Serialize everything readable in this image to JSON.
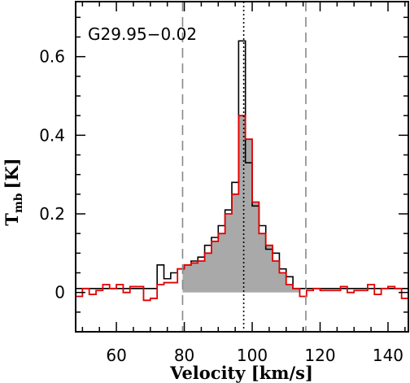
{
  "chart_data": {
    "type": "line",
    "xlabel": "Velocity [km/s]",
    "ylabel_main": "T",
    "ylabel_sub": "mb",
    "ylabel_unit": "[K]",
    "annotation": "G29.95−0.02",
    "xlim": [
      48,
      146
    ],
    "ylim": [
      -0.1,
      0.74
    ],
    "xticks": [
      60,
      80,
      100,
      120,
      140
    ],
    "xtick_labels": [
      "60",
      "80",
      "100",
      "120",
      "140"
    ],
    "yticks": [
      0,
      0.2,
      0.4,
      0.6
    ],
    "ytick_labels": [
      "0",
      "0.2",
      "0.4",
      "0.6"
    ],
    "vlines": [
      {
        "x": 79.5,
        "style": "dashed",
        "color": "#888888"
      },
      {
        "x": 97.5,
        "style": "dotted",
        "color": "#000000"
      },
      {
        "x": 115.8,
        "style": "dashed",
        "color": "#888888"
      }
    ],
    "series": [
      {
        "style": "black-step",
        "color": "#000000",
        "x": [
          48,
          50,
          52,
          54,
          56,
          58,
          60,
          62,
          64,
          66,
          68,
          70,
          72,
          74,
          76,
          78,
          80,
          82,
          84,
          86,
          88,
          90,
          92,
          94,
          96,
          98,
          100,
          102,
          104,
          106,
          108,
          110,
          112,
          114,
          116,
          118,
          120,
          122,
          124,
          126,
          128,
          130,
          132,
          134,
          136,
          138,
          140,
          142,
          144
        ],
        "y": [
          0.01,
          0.01,
          0.01,
          0.01,
          0.01,
          0.01,
          0.01,
          0.01,
          0.01,
          0.01,
          0.01,
          0.01,
          0.07,
          0.035,
          0.05,
          0.06,
          0.07,
          0.08,
          0.09,
          0.12,
          0.14,
          0.17,
          0.21,
          0.28,
          0.64,
          0.33,
          0.22,
          0.17,
          0.11,
          0.1,
          0.06,
          0.04,
          0.01,
          0.01,
          0.01,
          0.01,
          0.01,
          0.01,
          0.01,
          0.01,
          0.01,
          0.01,
          0.01,
          0.01,
          0.01,
          0.01,
          0.01,
          0.01,
          0.01
        ]
      },
      {
        "style": "red-step-filled",
        "color": "#e00000",
        "fill": "#a9a9a9",
        "x": [
          48,
          50,
          52,
          54,
          56,
          58,
          60,
          62,
          64,
          66,
          68,
          70,
          72,
          74,
          76,
          78,
          80,
          82,
          84,
          86,
          88,
          90,
          92,
          94,
          96,
          98,
          100,
          102,
          104,
          106,
          108,
          110,
          112,
          114,
          116,
          118,
          120,
          122,
          124,
          126,
          128,
          130,
          132,
          134,
          136,
          138,
          140,
          142,
          144
        ],
        "y": [
          -0.01,
          0.01,
          -0.005,
          0.005,
          0.02,
          0.01,
          0.02,
          0.0,
          0.015,
          0.015,
          -0.02,
          -0.015,
          0.02,
          0.025,
          0.025,
          0.06,
          0.07,
          0.075,
          0.08,
          0.1,
          0.13,
          0.15,
          0.2,
          0.25,
          0.45,
          0.39,
          0.23,
          0.15,
          0.12,
          0.08,
          0.05,
          0.02,
          0.01,
          -0.01,
          0.005,
          0.01,
          0.005,
          0.005,
          0.005,
          0.015,
          0.0,
          0.005,
          0.005,
          0.02,
          -0.005,
          0.01,
          0.015,
          0.01,
          -0.015
        ]
      }
    ],
    "colors": {
      "background": "#ffffff",
      "frame": "#000000"
    }
  }
}
